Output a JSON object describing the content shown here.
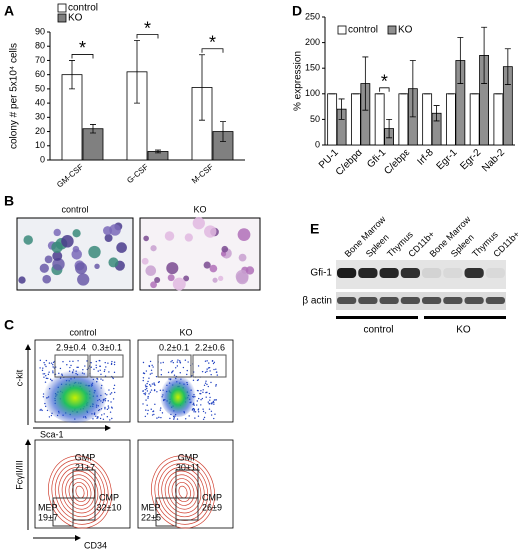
{
  "panel_labels": [
    "A",
    "B",
    "C",
    "D",
    "E"
  ],
  "chart_data": [
    {
      "type": "bar",
      "y_label": "colony # per 5x10⁴ cells",
      "categories": [
        "GM-CSF",
        "G-CSF",
        "M-CSF"
      ],
      "series": [
        {
          "name": "control",
          "color": "#ffffff",
          "values": [
            60,
            62,
            51
          ],
          "errors": [
            10,
            22,
            23
          ]
        },
        {
          "name": "KO",
          "color": "#808080",
          "values": [
            22,
            6,
            20
          ],
          "errors": [
            3,
            1,
            7
          ]
        }
      ],
      "ylim": [
        0,
        90
      ],
      "yticks": [
        0,
        10,
        20,
        30,
        40,
        50,
        60,
        70,
        80,
        90
      ],
      "legend": "upper left",
      "annotations": [
        {
          "text": "*",
          "category": 0
        },
        {
          "text": "*",
          "category": 1
        },
        {
          "text": "*",
          "category": 2
        }
      ]
    },
    {
      "type": "bar",
      "y_label": "% expression",
      "categories": [
        "PU-1",
        "C/ebpα",
        "Gfi-1",
        "C/ebpε",
        "Irf-8",
        "Egr-1",
        "Egr-2",
        "Nab-2"
      ],
      "series": [
        {
          "name": "control",
          "color": "#ffffff",
          "values": [
            100,
            100,
            100,
            100,
            100,
            100,
            100,
            100
          ],
          "errors": [
            0,
            0,
            0,
            0,
            0,
            0,
            0,
            0
          ]
        },
        {
          "name": "KO",
          "color": "#909090",
          "values": [
            70,
            120,
            32,
            110,
            62,
            165,
            175,
            153
          ],
          "errors": [
            20,
            52,
            18,
            55,
            15,
            45,
            55,
            35
          ]
        }
      ],
      "ylim": [
        0,
        250
      ],
      "yticks": [
        0,
        50,
        100,
        150,
        200,
        250
      ],
      "legend": "top",
      "annotations": [
        {
          "text": "*",
          "category": 2
        }
      ]
    }
  ],
  "panel_b": {
    "labels": [
      "control",
      "KO"
    ]
  },
  "panel_c": {
    "columns": [
      "control",
      "KO"
    ],
    "top": {
      "y_label": "c-kit",
      "x_label": "Sca-1",
      "gates": [
        [
          "2.9±0.4",
          "0.3±0.1"
        ],
        [
          "0.2±0.1",
          "2.2±0.6"
        ]
      ]
    },
    "bottom": {
      "y_label": "FcγII/III",
      "x_label": "CD34",
      "populations": [
        [
          {
            "name": "GMP",
            "value": "21±7"
          },
          {
            "name": "CMP",
            "value": "32±10"
          },
          {
            "name": "MEP",
            "value": "19±7"
          }
        ],
        [
          {
            "name": "GMP",
            "value": "30±11"
          },
          {
            "name": "CMP",
            "value": "26±9"
          },
          {
            "name": "MEP",
            "value": "22±5"
          }
        ]
      ]
    }
  },
  "panel_e": {
    "lanes": [
      "Bone Marrow",
      "Spleen",
      "Thymus",
      "CD11b+",
      "Bone Marrow",
      "Spleen",
      "Thymus",
      "CD11b+"
    ],
    "rows": [
      "Gfi-1",
      "β actin"
    ],
    "groups": [
      "control",
      "KO"
    ]
  }
}
